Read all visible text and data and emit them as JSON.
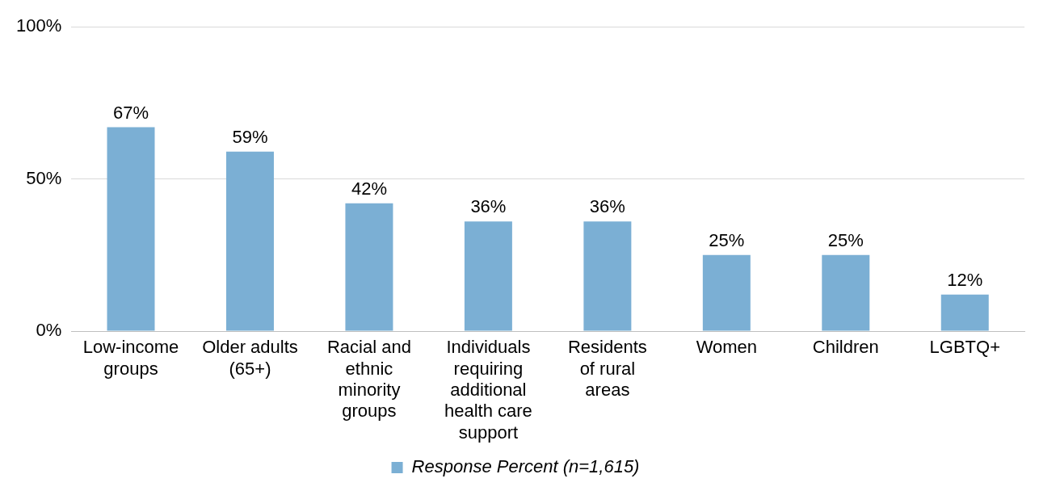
{
  "chart_data": {
    "type": "bar",
    "categories": [
      "Low-income\ngroups",
      "Older adults\n(65+)",
      "Racial and\nethnic\nminority\ngroups",
      "Individuals\nrequiring\nadditional\nhealth care\nsupport",
      "Residents\nof rural\nareas",
      "Women",
      "Children",
      "LGBTQ+"
    ],
    "series": [
      {
        "name": "Response Percent (n=1,615)",
        "color": "#7bafd4",
        "values": [
          67,
          59,
          42,
          36,
          36,
          25,
          25,
          12
        ],
        "value_labels": [
          "67%",
          "59%",
          "42%",
          "36%",
          "36%",
          "25%",
          "25%",
          "12%"
        ]
      }
    ],
    "ylim": [
      0,
      100
    ],
    "yticks": [
      {
        "value": 0,
        "label": "0%"
      },
      {
        "value": 50,
        "label": "50%"
      },
      {
        "value": 100,
        "label": "100%"
      }
    ],
    "grid": "y",
    "legend": "bottom"
  }
}
